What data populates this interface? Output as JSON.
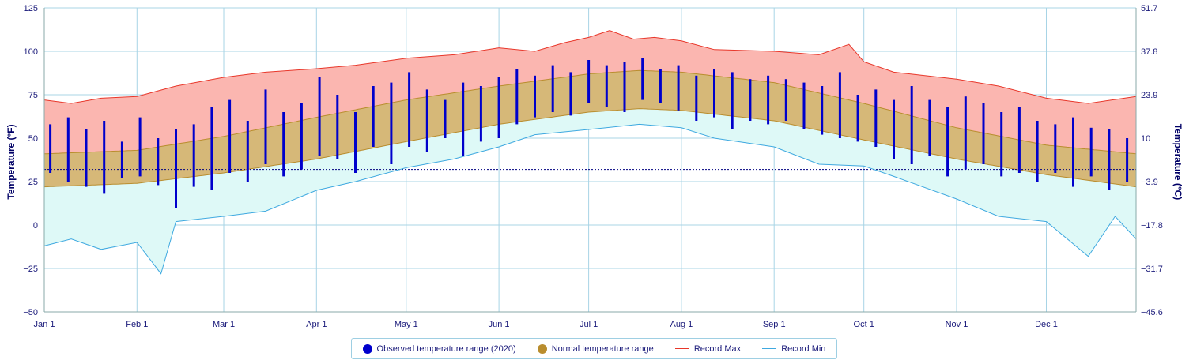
{
  "chart_data": {
    "type": "area",
    "xlabel": "",
    "ylabel": "Temperature (°F)",
    "ylabel_right": "Temperature (°C)",
    "ylim": [
      -50,
      125
    ],
    "x_range_days": [
      1,
      366
    ],
    "year": 2020,
    "x_ticks": [
      {
        "label": "Jan 1",
        "day": 1
      },
      {
        "label": "Feb 1",
        "day": 32
      },
      {
        "label": "Mar 1",
        "day": 61
      },
      {
        "label": "Apr 1",
        "day": 92
      },
      {
        "label": "May 1",
        "day": 122
      },
      {
        "label": "Jun 1",
        "day": 153
      },
      {
        "label": "Jul 1",
        "day": 183
      },
      {
        "label": "Aug 1",
        "day": 214
      },
      {
        "label": "Sep 1",
        "day": 245
      },
      {
        "label": "Oct 1",
        "day": 275
      },
      {
        "label": "Nov 1",
        "day": 306
      },
      {
        "label": "Dec 1",
        "day": 336
      }
    ],
    "y_ticks_left": [
      {
        "label": "125",
        "value": 125
      },
      {
        "label": "100",
        "value": 100
      },
      {
        "label": "75",
        "value": 75
      },
      {
        "label": "50",
        "value": 50
      },
      {
        "label": "25",
        "value": 25
      },
      {
        "label": "0",
        "value": 0
      },
      {
        "label": "−25",
        "value": -25
      },
      {
        "label": "−50",
        "value": -50
      }
    ],
    "y_ticks_right": [
      {
        "label": "51.7",
        "value": 125
      },
      {
        "label": "37.8",
        "value": 100
      },
      {
        "label": "23.9",
        "value": 75
      },
      {
        "label": "10",
        "value": 50
      },
      {
        "label": "−3.9",
        "value": 25
      },
      {
        "label": "−17.8",
        "value": 0
      },
      {
        "label": "−31.7",
        "value": -25
      },
      {
        "label": "−45.6",
        "value": -50
      }
    ],
    "freezing_line": 32,
    "normal_range": {
      "low": {
        "x": [
          1,
          32,
          61,
          92,
          122,
          153,
          183,
          200,
          214,
          245,
          275,
          306,
          336,
          366
        ],
        "y": [
          22,
          24,
          30,
          38,
          48,
          58,
          65,
          67,
          66,
          60,
          49,
          38,
          29,
          22
        ]
      },
      "high": {
        "x": [
          1,
          32,
          61,
          92,
          122,
          153,
          183,
          200,
          214,
          245,
          275,
          306,
          336,
          366
        ],
        "y": [
          41,
          43,
          51,
          62,
          72,
          80,
          87,
          89,
          88,
          82,
          70,
          56,
          46,
          41
        ]
      }
    },
    "series": [
      {
        "name": "Record Max",
        "x": [
          1,
          10,
          20,
          32,
          45,
          61,
          75,
          92,
          105,
          122,
          138,
          153,
          165,
          175,
          183,
          190,
          198,
          205,
          214,
          225,
          245,
          260,
          270,
          275,
          285,
          306,
          320,
          336,
          350,
          366
        ],
        "y": [
          72,
          70,
          73,
          74,
          80,
          85,
          88,
          90,
          92,
          96,
          98,
          102,
          100,
          105,
          108,
          112,
          107,
          108,
          106,
          101,
          100,
          98,
          104,
          94,
          88,
          84,
          80,
          73,
          70,
          74
        ]
      },
      {
        "name": "Record Min",
        "x": [
          1,
          10,
          20,
          32,
          40,
          45,
          61,
          75,
          92,
          105,
          122,
          138,
          153,
          165,
          183,
          200,
          214,
          225,
          245,
          260,
          275,
          285,
          306,
          320,
          336,
          350,
          359,
          366
        ],
        "y": [
          -12,
          -8,
          -14,
          -10,
          -28,
          2,
          5,
          8,
          20,
          25,
          33,
          38,
          45,
          52,
          55,
          58,
          56,
          50,
          45,
          35,
          34,
          28,
          15,
          5,
          2,
          -18,
          5,
          -8
        ]
      }
    ],
    "observed_range_2020": {
      "name": "Observed temperature range (2020)",
      "day": [
        3,
        9,
        15,
        21,
        27,
        33,
        39,
        45,
        51,
        57,
        63,
        69,
        75,
        81,
        87,
        93,
        99,
        105,
        111,
        117,
        123,
        129,
        135,
        141,
        147,
        153,
        159,
        165,
        171,
        177,
        183,
        189,
        195,
        201,
        207,
        213,
        219,
        225,
        231,
        237,
        243,
        249,
        255,
        261,
        267,
        273,
        279,
        285,
        291,
        297,
        303,
        309,
        315,
        321,
        327,
        333,
        339,
        345,
        351,
        357,
        363
      ],
      "low": [
        30,
        25,
        22,
        18,
        27,
        28,
        23,
        10,
        22,
        20,
        30,
        25,
        35,
        28,
        32,
        40,
        38,
        30,
        45,
        35,
        45,
        42,
        50,
        40,
        48,
        50,
        58,
        62,
        65,
        63,
        70,
        68,
        65,
        72,
        70,
        66,
        60,
        62,
        55,
        60,
        58,
        60,
        55,
        52,
        50,
        48,
        45,
        38,
        35,
        40,
        28,
        32,
        35,
        28,
        30,
        25,
        30,
        22,
        28,
        20,
        25
      ],
      "high": [
        58,
        62,
        55,
        60,
        48,
        62,
        50,
        55,
        58,
        68,
        72,
        60,
        78,
        65,
        70,
        85,
        75,
        65,
        80,
        82,
        88,
        78,
        72,
        82,
        80,
        85,
        90,
        86,
        92,
        88,
        95,
        92,
        94,
        96,
        90,
        92,
        86,
        90,
        88,
        84,
        86,
        84,
        82,
        80,
        88,
        75,
        78,
        72,
        80,
        72,
        68,
        74,
        70,
        65,
        68,
        60,
        58,
        62,
        56,
        55,
        50
      ],
      "color": "#0000cc"
    },
    "colors": {
      "record_max_fill": "#fbb6b0",
      "record_max_line": "#e8372a",
      "record_min_fill": "#def9f7",
      "record_min_line": "#3fa9e0",
      "normal_fill": "#d6b878",
      "normal_line": "#b98d2e",
      "observed": "#0000cc",
      "grid": "#a8d4e6"
    },
    "grid": true,
    "legend_position": "bottom-center"
  },
  "legend": {
    "observed": "Observed temperature range (2020)",
    "normal": "Normal temperature range",
    "record_max": "Record Max",
    "record_min": "Record Min"
  },
  "axis": {
    "left_title": "Temperature (°F)",
    "right_title": "Temperature (°C)"
  }
}
